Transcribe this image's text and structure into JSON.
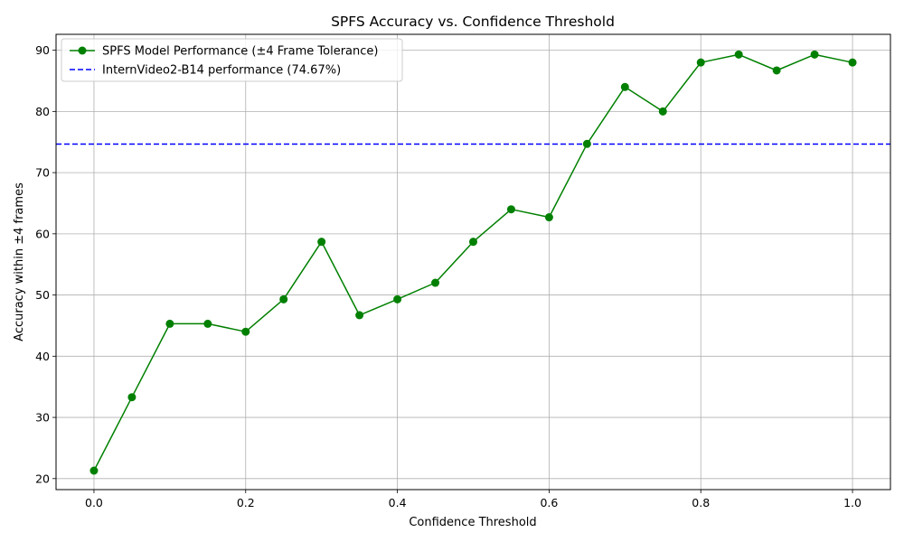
{
  "chart_data": {
    "type": "line",
    "title": "SPFS Accuracy vs. Confidence Threshold",
    "xlabel": "Confidence Threshold",
    "ylabel": "Accuracy within ±4 frames",
    "xlim": [
      -0.05,
      1.05
    ],
    "ylim": [
      18.2,
      92.6
    ],
    "x_ticks": [
      0.0,
      0.2,
      0.4,
      0.6,
      0.8,
      1.0
    ],
    "x_tick_labels": [
      "0.0",
      "0.2",
      "0.4",
      "0.6",
      "0.8",
      "1.0"
    ],
    "y_ticks": [
      20,
      30,
      40,
      50,
      60,
      70,
      80,
      90
    ],
    "y_tick_labels": [
      "20",
      "30",
      "40",
      "50",
      "60",
      "70",
      "80",
      "90"
    ],
    "grid": true,
    "legend_position": "upper-left",
    "x": [
      0.0,
      0.05,
      0.1,
      0.15,
      0.2,
      0.25,
      0.3,
      0.35,
      0.4,
      0.45,
      0.5,
      0.55,
      0.6,
      0.65,
      0.7,
      0.75,
      0.8,
      0.85,
      0.9,
      0.95,
      1.0
    ],
    "series": [
      {
        "name": "SPFS Model Performance (±4 Frame Tolerance)",
        "color": "#008000",
        "style": "solid-with-markers",
        "values": [
          21.3,
          33.3,
          45.3,
          45.3,
          44.0,
          49.3,
          58.7,
          46.7,
          49.3,
          52.0,
          58.7,
          64.0,
          62.7,
          74.7,
          84.0,
          80.0,
          88.0,
          89.3,
          86.7,
          89.3,
          88.0
        ]
      }
    ],
    "reference_lines": [
      {
        "name": "InternVideo2-B14 performance (74.67%)",
        "color": "#0000ff",
        "style": "dashed",
        "y": 74.67
      }
    ]
  }
}
